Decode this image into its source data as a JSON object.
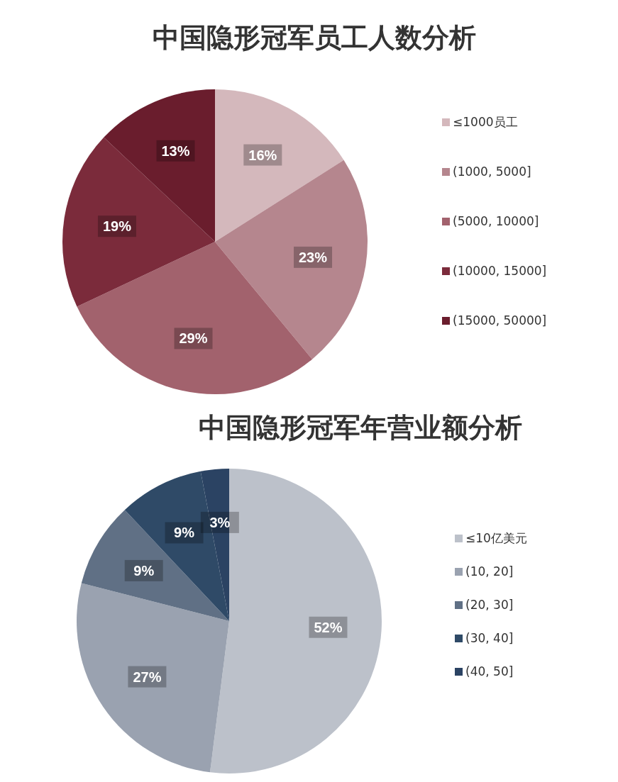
{
  "chart_data": [
    {
      "type": "pie",
      "title": "中国隐形冠军员工人数分析",
      "categories": [
        "≤1000员工",
        "(1000, 5000]",
        "(5000, 10000]",
        "(10000, 15000]",
        "(15000, 50000]"
      ],
      "values": [
        16,
        23,
        29,
        19,
        13
      ],
      "colors": [
        "#d4b8bc",
        "#b5868e",
        "#a2626d",
        "#7b2b3b",
        "#6a1d2d"
      ],
      "value_labels": [
        "16%",
        "23%",
        "29%",
        "19%",
        "13%"
      ],
      "legend": "right"
    },
    {
      "type": "pie",
      "title": "中国隐形冠军年营业额分析",
      "categories": [
        "≤10亿美元",
        "(10, 20]",
        "(20, 30]",
        "(30, 40]",
        "(40, 50]"
      ],
      "values": [
        52,
        27,
        9,
        9,
        3
      ],
      "colors": [
        "#bcc1ca",
        "#9aa2b0",
        "#607085",
        "#2f4a67",
        "#2b4363"
      ],
      "value_labels": [
        "52%",
        "27%",
        "9%",
        "9%",
        "3%"
      ],
      "legend": "right"
    }
  ]
}
